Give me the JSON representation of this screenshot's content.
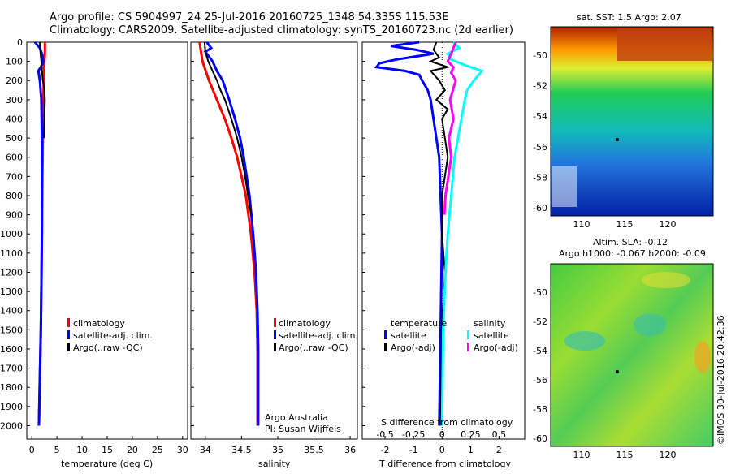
{
  "header": {
    "line1": "Argo profile: CS 5904997_24 25-Jul-2016 20160725_1348 54.335S 115.53E",
    "line2": "Climatology: CARS2009. Satellite-adjusted climatology: synTS_20160723.nc (2d earlier)"
  },
  "colors": {
    "climatology": "#ff0000",
    "satellite": "#0000ff",
    "argo": "#000000",
    "sat_diff_S": "#00ffff",
    "argo_diff_S": "#ff00ff"
  },
  "depth_ticks": [
    "0",
    "100",
    "200",
    "300",
    "400",
    "500",
    "600",
    "700",
    "800",
    "900",
    "1000",
    "1100",
    "1200",
    "1300",
    "1400",
    "1500",
    "1600",
    "1700",
    "1800",
    "1900",
    "2000"
  ],
  "chart_data": [
    {
      "type": "line",
      "name": "temperature",
      "xlabel": "temperature (deg C)",
      "xlim": [
        -1,
        31
      ],
      "ylim": [
        2070,
        0
      ],
      "x_ticks": [
        "0",
        "5",
        "10",
        "15",
        "20",
        "25",
        "30"
      ],
      "legend": [
        "climatology",
        "satellite-adj. clim.",
        "Argo(..raw -QC)"
      ],
      "series": [
        {
          "name": "climatology",
          "key": "climatology",
          "depth": [
            0,
            50,
            100,
            150,
            200,
            300,
            500,
            700,
            1000,
            1300,
            1500,
            2000
          ],
          "values": [
            2.6,
            2.6,
            2.5,
            2.4,
            2.4,
            2.3,
            2.2,
            2.1,
            2.0,
            1.9,
            1.8,
            1.4
          ]
        },
        {
          "name": "satellite-adj. clim.",
          "key": "satellite",
          "depth": [
            0,
            30,
            60,
            100,
            130,
            150,
            200,
            300,
            500,
            700,
            1000,
            1300,
            1500,
            2000
          ],
          "values": [
            0.6,
            1.6,
            2.0,
            2.3,
            1.8,
            1.3,
            1.6,
            1.9,
            2.0,
            2.0,
            2.0,
            1.9,
            1.8,
            1.4
          ]
        },
        {
          "name": "Argo(..raw -QC)",
          "key": "argo",
          "depth": [
            0,
            50,
            100,
            150,
            200,
            250,
            300,
            400,
            500
          ],
          "values": [
            1.6,
            1.7,
            1.9,
            2.0,
            2.2,
            2.5,
            2.6,
            2.5,
            2.4
          ]
        }
      ]
    },
    {
      "type": "line",
      "name": "salinity",
      "xlabel": "salinity",
      "xlim": [
        33.8,
        36.1
      ],
      "ylim": [
        2070,
        0
      ],
      "x_ticks": [
        "34",
        "34.5",
        "35",
        "35.5",
        "36"
      ],
      "legend": [
        "climatology",
        "satellite-adj. clim.",
        "Argo(..raw -QC)"
      ],
      "annotation": [
        "Argo Australia",
        "PI: Susan Wijffels"
      ],
      "series": [
        {
          "name": "climatology",
          "key": "climatology",
          "depth": [
            0,
            100,
            200,
            300,
            400,
            500,
            600,
            800,
            1000,
            1200,
            1400,
            1600,
            1800,
            2000
          ],
          "values": [
            33.92,
            33.96,
            34.05,
            34.16,
            34.27,
            34.36,
            34.44,
            34.56,
            34.63,
            34.68,
            34.71,
            34.72,
            34.72,
            34.72
          ]
        },
        {
          "name": "satellite-adj. clim.",
          "key": "satellite",
          "depth": [
            0,
            30,
            50,
            80,
            100,
            150,
            200,
            300,
            400,
            500,
            600,
            800,
            1000,
            1200,
            1400,
            1600,
            1800,
            2000
          ],
          "values": [
            34.02,
            34.08,
            34.0,
            34.06,
            34.1,
            34.16,
            34.24,
            34.33,
            34.41,
            34.48,
            34.53,
            34.61,
            34.66,
            34.7,
            34.72,
            34.73,
            34.73,
            34.73
          ]
        },
        {
          "name": "Argo(..raw -QC)",
          "key": "argo",
          "depth": [
            0,
            50,
            100,
            150,
            200,
            250,
            300,
            400,
            500,
            600,
            700,
            800,
            900
          ],
          "values": [
            33.99,
            34.0,
            34.04,
            34.1,
            34.16,
            34.21,
            34.27,
            34.36,
            34.44,
            34.5,
            34.55,
            34.59,
            34.63
          ]
        }
      ]
    },
    {
      "type": "line",
      "name": "differences",
      "xlabel": "T difference from climatology",
      "xlabel_top": "S difference from climatology",
      "xlim": [
        -2.8,
        2.9
      ],
      "ylim": [
        2070,
        0
      ],
      "x_ticks": [
        "-2",
        "-1",
        "0",
        "1",
        "2"
      ],
      "s_ticks": [
        "-0.5",
        "-0.25",
        "0",
        "0.25",
        "0.5"
      ],
      "legend_titles": [
        "temperature",
        "salinity"
      ],
      "legend_left": [
        "satellite",
        "Argo(-adj)"
      ],
      "legend_right": [
        "satellite",
        "Argo(-adj)"
      ],
      "series": [
        {
          "name": "T satellite",
          "key": "satellite",
          "depth": [
            0,
            20,
            40,
            60,
            90,
            110,
            130,
            150,
            170,
            200,
            250,
            300,
            400,
            600,
            1000,
            1500,
            2000
          ],
          "values": [
            -0.8,
            -1.8,
            -0.9,
            -0.3,
            -1.6,
            -2.2,
            -2.3,
            -1.3,
            -0.8,
            -0.7,
            -0.5,
            -0.4,
            -0.3,
            -0.1,
            0,
            -0.05,
            -0.1
          ]
        },
        {
          "name": "T Argo(-adj)",
          "key": "argo",
          "depth": [
            0,
            40,
            80,
            100,
            130,
            150,
            200,
            250,
            300,
            350,
            400,
            500,
            600,
            800,
            1000,
            1200,
            1500,
            2000
          ],
          "values": [
            -0.2,
            -0.3,
            -0.1,
            -0.4,
            0.2,
            -0.4,
            -0.1,
            0.1,
            -0.2,
            0.2,
            0.0,
            0.1,
            0.2,
            0.0,
            0.0,
            0.1,
            0.0,
            -0.05
          ]
        },
        {
          "name": "S satellite",
          "key": "sat_diff_S",
          "depth": [
            0,
            30,
            60,
            90,
            120,
            150,
            200,
            250,
            300,
            400,
            500,
            600,
            800,
            1000,
            1200,
            1500,
            2000
          ],
          "values": [
            0.1,
            0.15,
            0.05,
            0.08,
            0.2,
            0.35,
            0.28,
            0.22,
            0.2,
            0.17,
            0.14,
            0.11,
            0.08,
            0.05,
            0.03,
            0.01,
            0.0
          ]
        },
        {
          "name": "S Argo(-adj)",
          "key": "argo_diff_S",
          "depth": [
            0,
            30,
            60,
            100,
            130,
            160,
            200,
            300,
            400,
            500,
            600,
            800,
            900
          ],
          "values": [
            0.12,
            0.1,
            0.08,
            0.05,
            0.1,
            0.08,
            0.12,
            0.07,
            0.1,
            0.06,
            0.08,
            0.03,
            0.02
          ]
        }
      ]
    }
  ],
  "maps": {
    "sst_title": "sat. SST: 1.5 Argo: 2.07",
    "sla_title1": "Altim. SLA: -0.12",
    "sla_title2": "Argo h1000: -0.067 h2000: -0.09",
    "lat_ticks": [
      "-50",
      "-52",
      "-54",
      "-56",
      "-58",
      "-60"
    ],
    "lon_ticks": [
      "110",
      "115",
      "120"
    ],
    "credit": "©IMOS 30-Jul-2016 20:42:36"
  }
}
